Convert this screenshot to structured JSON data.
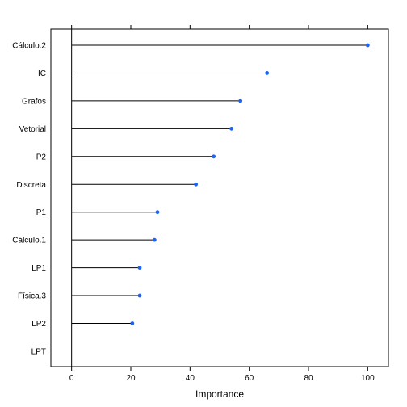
{
  "chart_data": {
    "type": "dotplot",
    "title": "",
    "xlabel": "Importance",
    "ylabel": "",
    "xlim": [
      -7,
      107
    ],
    "xticks": [
      0,
      20,
      40,
      60,
      80,
      100
    ],
    "grid": false,
    "legend": "none",
    "point_color": "#1E64F0",
    "line_color": "#000000",
    "categories": [
      "Cálculo.2",
      "IC",
      "Grafos",
      "Vetorial",
      "P2",
      "Discreta",
      "P1",
      "Cálculo.1",
      "LP1",
      "Física.3",
      "LP2",
      "LPT"
    ],
    "values": [
      100,
      66,
      57,
      54,
      48,
      42,
      29,
      28,
      23,
      23,
      20.5,
      0
    ]
  }
}
